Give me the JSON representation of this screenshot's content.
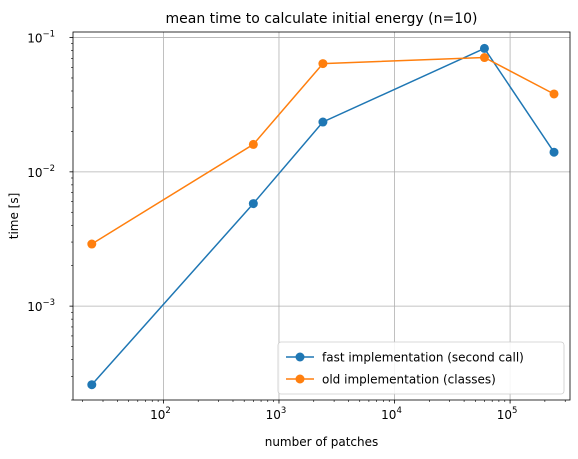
{
  "chart_data": {
    "type": "line",
    "title": "mean time to calculate initial energy (n=10)",
    "xlabel": "number of patches",
    "ylabel": "time [s]",
    "xscale": "log",
    "yscale": "log",
    "xlim": [
      16.5,
      330000
    ],
    "ylim": [
      0.0002,
      0.11
    ],
    "grid": true,
    "legend_position": "lower-right",
    "x_ticks": [
      {
        "value": 100,
        "base": "10",
        "exp": "2"
      },
      {
        "value": 1000,
        "base": "10",
        "exp": "3"
      },
      {
        "value": 10000,
        "base": "10",
        "exp": "4"
      },
      {
        "value": 100000,
        "base": "10",
        "exp": "5"
      }
    ],
    "y_ticks": [
      {
        "value": 0.001,
        "base": "10",
        "exp": "−3"
      },
      {
        "value": 0.01,
        "base": "10",
        "exp": "−2"
      },
      {
        "value": 0.1,
        "base": "10",
        "exp": "−1"
      }
    ],
    "series": [
      {
        "name": "fast implementation (second call)",
        "color": "#1f77b4",
        "x": [
          24,
          600,
          2400,
          60000,
          240000
        ],
        "y": [
          0.00026,
          0.0058,
          0.0235,
          0.083,
          0.014
        ]
      },
      {
        "name": "old implementation (classes)",
        "color": "#ff7f0e",
        "x": [
          24,
          600,
          2400,
          60000,
          240000
        ],
        "y": [
          0.0029,
          0.016,
          0.064,
          0.071,
          0.038
        ]
      }
    ]
  }
}
